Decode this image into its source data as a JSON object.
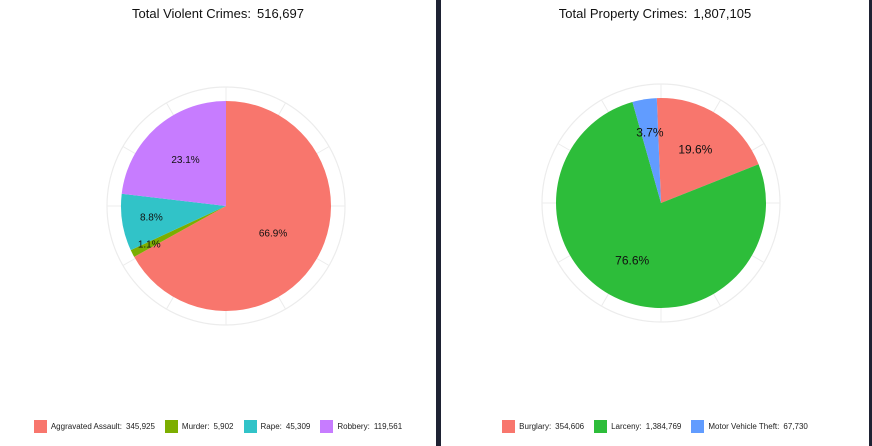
{
  "chart_data": [
    {
      "type": "pie",
      "title": "Total Violent Crimes:",
      "total": "516,697",
      "categories": [
        "Aggravated Assault:",
        "Murder:",
        "Rape:",
        "Robbery:"
      ],
      "values": [
        345925,
        5902,
        45309,
        119561
      ],
      "value_labels": [
        "345,925",
        "5,902",
        "45,309",
        "119,561"
      ],
      "percent_labels": [
        "66.9%",
        "1.1%",
        "8.8%",
        "23.1%"
      ],
      "colors": [
        "#f8766d",
        "#7cae00",
        "#31c3c8",
        "#c77cff"
      ],
      "start_angle": 0,
      "legend_position": "bottom"
    },
    {
      "type": "pie",
      "title": "Total Property Crimes:",
      "total": "1,807,105",
      "categories": [
        "Burglary:",
        "Larceny:",
        "Motor Vehicle Theft:"
      ],
      "values": [
        354606,
        1384769,
        67730
      ],
      "value_labels": [
        "354,606",
        "1,384,769",
        "67,730"
      ],
      "percent_labels": [
        "19.6%",
        "76.6%",
        "3.7%"
      ],
      "colors": [
        "#f8766d",
        "#2dbd3a",
        "#619cff"
      ],
      "start_angle": -2.3,
      "legend_position": "bottom"
    }
  ]
}
